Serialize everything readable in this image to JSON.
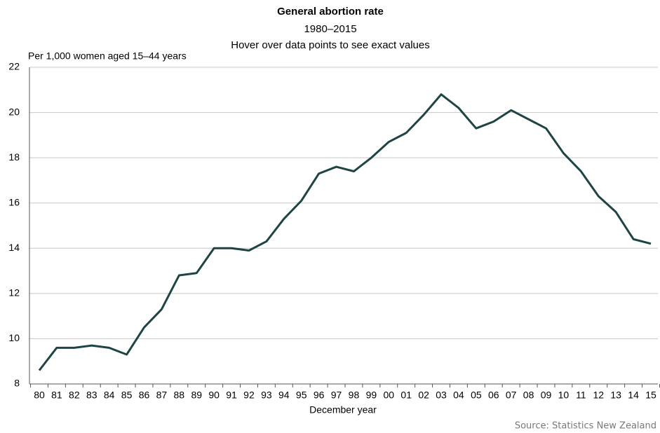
{
  "chart_data": {
    "type": "line",
    "title": "General abortion rate",
    "subtitle": "1980–2015",
    "annotation": "Hover over data points to see exact values",
    "y_axis_label": "Per 1,000 women aged 15–44 years",
    "x_axis_label": "December year",
    "source": "Source: Statistics New Zealand",
    "categories": [
      "80",
      "81",
      "82",
      "83",
      "84",
      "85",
      "86",
      "87",
      "88",
      "89",
      "90",
      "91",
      "92",
      "93",
      "94",
      "95",
      "96",
      "97",
      "98",
      "99",
      "00",
      "01",
      "02",
      "03",
      "04",
      "05",
      "06",
      "07",
      "08",
      "09",
      "10",
      "11",
      "12",
      "13",
      "14",
      "15"
    ],
    "series": [
      {
        "name": "General abortion rate",
        "color": "#1e4444",
        "values": [
          8.6,
          9.6,
          9.6,
          9.7,
          9.6,
          9.3,
          10.5,
          11.3,
          12.8,
          12.9,
          14.0,
          14.0,
          13.9,
          14.3,
          15.3,
          16.1,
          17.3,
          17.6,
          17.4,
          18.0,
          18.7,
          19.1,
          19.9,
          20.8,
          20.2,
          19.3,
          19.6,
          20.1,
          19.7,
          19.3,
          18.2,
          17.4,
          16.3,
          15.6,
          14.4,
          14.2
        ]
      }
    ],
    "ylim": [
      8,
      22
    ],
    "yticks": [
      8,
      10,
      12,
      14,
      16,
      18,
      20,
      22
    ],
    "grid": true
  }
}
